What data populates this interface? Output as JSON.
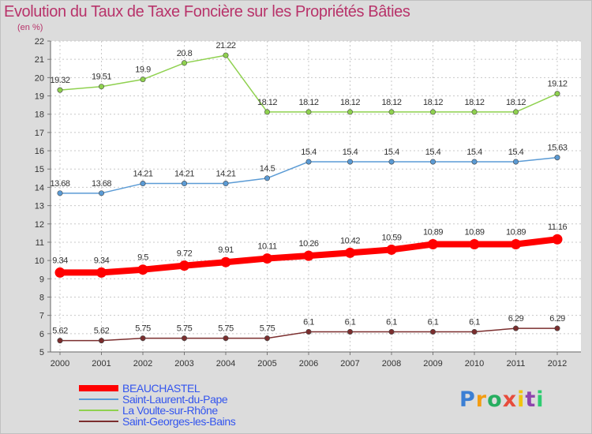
{
  "chart_data": {
    "type": "line",
    "title": "Evolution du Taux de Taxe Foncière sur les Propriétés Bâties",
    "unit_label": "(en %)",
    "xlabel": "",
    "ylabel": "(en %)",
    "ylim": [
      5,
      22
    ],
    "grid": true,
    "legend_position": "bottom-left",
    "x": [
      "2000",
      "2001",
      "2002",
      "2003",
      "2004",
      "2005",
      "2006",
      "2007",
      "2008",
      "2009",
      "2010",
      "2011",
      "2012"
    ],
    "y_ticks": [
      5,
      6,
      7,
      8,
      9,
      10,
      11,
      12,
      13,
      14,
      15,
      16,
      17,
      18,
      19,
      20,
      21,
      22
    ],
    "series": [
      {
        "name": "BEAUCHASTEL",
        "color": "#ff0000",
        "width": "thick",
        "values": [
          9.34,
          9.34,
          9.5,
          9.72,
          9.91,
          10.11,
          10.26,
          10.42,
          10.59,
          10.89,
          10.89,
          10.89,
          11.16
        ],
        "labels": [
          "9.34",
          "9.34",
          "9.5",
          "9.72",
          "9.91",
          "10.11",
          "10.26",
          "10.42",
          "10.59",
          "10.89",
          "10.89",
          "10.89",
          "11.16"
        ]
      },
      {
        "name": "Saint-Laurent-du-Pape",
        "color": "#5b9bd5",
        "width": "thin",
        "values": [
          13.68,
          13.68,
          14.21,
          14.21,
          14.21,
          14.5,
          15.4,
          15.4,
          15.4,
          15.4,
          15.4,
          15.4,
          15.63
        ],
        "labels": [
          "13.68",
          "13.68",
          "14.21",
          "14.21",
          "14.21",
          "14.5",
          "15.4",
          "15.4",
          "15.4",
          "15.4",
          "15.4",
          "15.4",
          "15.63"
        ]
      },
      {
        "name": "La Voulte-sur-Rhône",
        "color": "#8fd14f",
        "width": "thin",
        "values": [
          19.32,
          19.51,
          19.9,
          20.8,
          21.22,
          18.12,
          18.12,
          18.12,
          18.12,
          18.12,
          18.12,
          18.12,
          19.12
        ],
        "labels": [
          "19.32",
          "19.51",
          "19.9",
          "20.8",
          "21.22",
          "18.12",
          "18.12",
          "18.12",
          "18.12",
          "18.12",
          "18.12",
          "18.12",
          "19.12"
        ]
      },
      {
        "name": "Saint-Georges-les-Bains",
        "color": "#7b2e2e",
        "width": "thin",
        "values": [
          5.62,
          5.62,
          5.75,
          5.75,
          5.75,
          5.75,
          6.1,
          6.1,
          6.1,
          6.1,
          6.1,
          6.29,
          6.29
        ],
        "labels": [
          "5.62",
          "5.62",
          "5.75",
          "5.75",
          "5.75",
          "5.75",
          "6.1",
          "6.1",
          "6.1",
          "6.1",
          "6.1",
          "6.29",
          "6.29"
        ]
      }
    ]
  },
  "logo": {
    "letters": [
      "P",
      "r",
      "o",
      "x",
      "i",
      "t",
      "i"
    ]
  }
}
